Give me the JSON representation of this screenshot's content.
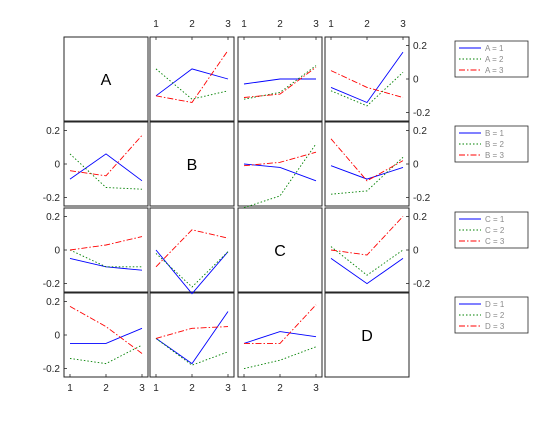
{
  "chart_data": {
    "type": "line",
    "title": "",
    "variables": [
      "A",
      "B",
      "C",
      "D"
    ],
    "x": [
      1,
      2,
      3
    ],
    "x_ticks": [
      "1",
      "2",
      "3"
    ],
    "ylim": [
      -0.25,
      0.25
    ],
    "y_ticks": [
      "0.2",
      "0",
      "-0.2"
    ],
    "y_tick_values": [
      0.2,
      0,
      -0.2
    ],
    "grid": false,
    "legend_placement": "right",
    "line_styles": [
      {
        "level": 1,
        "color": "#0000ff",
        "dash": "solid"
      },
      {
        "level": 2,
        "color": "#008000",
        "dash": "dotted"
      },
      {
        "level": 3,
        "color": "#ff0000",
        "dash": "dashdot"
      }
    ],
    "legends": [
      {
        "variable": "A",
        "entries": [
          "A = 1",
          "A = 2",
          "A = 3"
        ]
      },
      {
        "variable": "B",
        "entries": [
          "B = 1",
          "B = 2",
          "B = 3"
        ]
      },
      {
        "variable": "C",
        "entries": [
          "C = 1",
          "C = 2",
          "C = 3"
        ]
      },
      {
        "variable": "D",
        "entries": [
          "D = 1",
          "D = 2",
          "D = 3"
        ]
      }
    ],
    "panels": [
      {
        "row": "A",
        "col": "B",
        "series": [
          [
            -0.1,
            0.06,
            0.0
          ],
          [
            0.06,
            -0.12,
            -0.07
          ],
          [
            -0.1,
            -0.14,
            0.17
          ]
        ]
      },
      {
        "row": "A",
        "col": "C",
        "series": [
          [
            -0.03,
            0.0,
            0.0
          ],
          [
            -0.12,
            -0.08,
            0.08
          ],
          [
            -0.11,
            -0.09,
            0.07
          ]
        ]
      },
      {
        "row": "A",
        "col": "D",
        "series": [
          [
            -0.05,
            -0.14,
            0.16
          ],
          [
            -0.07,
            -0.16,
            0.04
          ],
          [
            0.05,
            -0.05,
            -0.11
          ]
        ]
      },
      {
        "row": "B",
        "col": "A",
        "series": [
          [
            -0.09,
            0.06,
            -0.1
          ],
          [
            0.06,
            -0.14,
            -0.15
          ],
          [
            -0.04,
            -0.07,
            0.17
          ]
        ]
      },
      {
        "row": "B",
        "col": "C",
        "series": [
          [
            0.0,
            -0.02,
            -0.1
          ],
          [
            -0.26,
            -0.19,
            0.12
          ],
          [
            -0.01,
            0.01,
            0.07
          ]
        ]
      },
      {
        "row": "B",
        "col": "D",
        "series": [
          [
            -0.01,
            -0.09,
            -0.02
          ],
          [
            -0.18,
            -0.16,
            0.04
          ],
          [
            0.15,
            -0.1,
            0.02
          ]
        ]
      },
      {
        "row": "C",
        "col": "A",
        "series": [
          [
            -0.05,
            -0.1,
            -0.12
          ],
          [
            0.0,
            -0.1,
            -0.1
          ],
          [
            0.0,
            0.03,
            0.08
          ]
        ]
      },
      {
        "row": "C",
        "col": "B",
        "series": [
          [
            0.0,
            -0.26,
            -0.01
          ],
          [
            -0.02,
            -0.22,
            -0.01
          ],
          [
            -0.1,
            0.12,
            0.07
          ]
        ]
      },
      {
        "row": "C",
        "col": "D",
        "series": [
          [
            -0.05,
            -0.2,
            -0.05
          ],
          [
            0.02,
            -0.15,
            0.0
          ],
          [
            0.0,
            -0.03,
            0.2
          ]
        ]
      },
      {
        "row": "D",
        "col": "A",
        "series": [
          [
            -0.05,
            -0.05,
            0.04
          ],
          [
            -0.14,
            -0.17,
            -0.06
          ],
          [
            0.17,
            0.05,
            -0.11
          ]
        ]
      },
      {
        "row": "D",
        "col": "B",
        "series": [
          [
            -0.02,
            -0.17,
            0.14
          ],
          [
            -0.02,
            -0.18,
            -0.1
          ],
          [
            -0.02,
            0.04,
            0.05
          ]
        ]
      },
      {
        "row": "D",
        "col": "C",
        "series": [
          [
            -0.05,
            0.02,
            -0.01
          ],
          [
            -0.2,
            -0.15,
            -0.07
          ],
          [
            -0.05,
            -0.05,
            0.18
          ]
        ]
      }
    ]
  }
}
